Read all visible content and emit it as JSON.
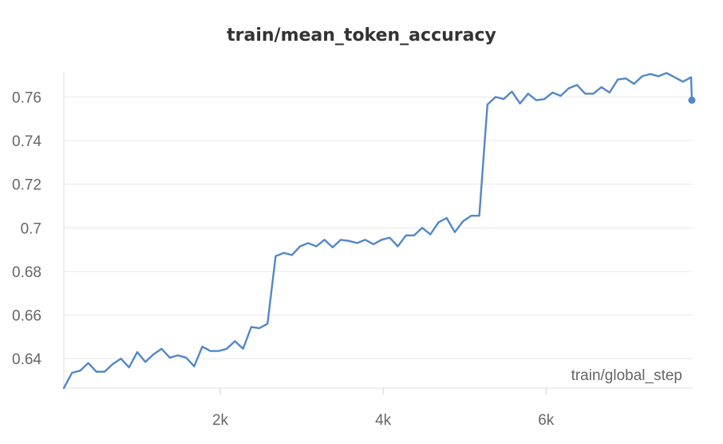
{
  "chart_data": {
    "type": "line",
    "title": "train/mean_token_accuracy",
    "xlabel": "train/global_step",
    "ylabel": "",
    "xlim": [
      80,
      7800
    ],
    "ylim": [
      0.6265,
      0.7715
    ],
    "x_ticks": [
      {
        "value": 2000,
        "label": "2k"
      },
      {
        "value": 4000,
        "label": "4k"
      },
      {
        "value": 6000,
        "label": "6k"
      }
    ],
    "y_ticks": [
      {
        "value": 0.64,
        "label": "0.64"
      },
      {
        "value": 0.66,
        "label": "0.66"
      },
      {
        "value": 0.68,
        "label": "0.68"
      },
      {
        "value": 0.7,
        "label": "0.7"
      },
      {
        "value": 0.72,
        "label": "0.72"
      },
      {
        "value": 0.74,
        "label": "0.74"
      },
      {
        "value": 0.76,
        "label": "0.76"
      }
    ],
    "grid": true,
    "color": "#5387c8",
    "series": [
      {
        "x": [
          80,
          180,
          280,
          380,
          480,
          580,
          680,
          780,
          880,
          980,
          1080,
          1180,
          1280,
          1380,
          1480,
          1580,
          1680,
          1780,
          1880,
          1980,
          2080,
          2180,
          2280,
          2380,
          2480,
          2580,
          2680,
          2780,
          2880,
          2980,
          3080,
          3180,
          3280,
          3380,
          3480,
          3580,
          3680,
          3780,
          3880,
          3980,
          4080,
          4180,
          4280,
          4380,
          4480,
          4580,
          4680,
          4780,
          4880,
          4980,
          5080,
          5180,
          5280,
          5380,
          5480,
          5580,
          5680,
          5780,
          5880,
          5980,
          6080,
          6180,
          6280,
          6380,
          6480,
          6580,
          6680,
          6780,
          6880,
          6980,
          7080,
          7180,
          7280,
          7380,
          7480,
          7580,
          7680,
          7780,
          7790
        ],
        "values": [
          0.6265,
          0.6335,
          0.6345,
          0.638,
          0.634,
          0.634,
          0.6375,
          0.64,
          0.636,
          0.643,
          0.6385,
          0.642,
          0.6445,
          0.6405,
          0.6415,
          0.6405,
          0.6365,
          0.6455,
          0.6435,
          0.6435,
          0.6445,
          0.648,
          0.6445,
          0.6545,
          0.654,
          0.656,
          0.687,
          0.6885,
          0.6875,
          0.6915,
          0.693,
          0.6915,
          0.6945,
          0.691,
          0.6945,
          0.694,
          0.693,
          0.6945,
          0.6925,
          0.6945,
          0.6955,
          0.6915,
          0.6965,
          0.6965,
          0.7,
          0.697,
          0.7025,
          0.7045,
          0.698,
          0.703,
          0.7055,
          0.7055,
          0.7565,
          0.76,
          0.759,
          0.7625,
          0.757,
          0.7615,
          0.7585,
          0.759,
          0.762,
          0.7605,
          0.764,
          0.7655,
          0.7615,
          0.7615,
          0.7645,
          0.762,
          0.768,
          0.7685,
          0.766,
          0.7695,
          0.7705,
          0.7695,
          0.771,
          0.769,
          0.767,
          0.769,
          0.7585
        ]
      }
    ]
  }
}
